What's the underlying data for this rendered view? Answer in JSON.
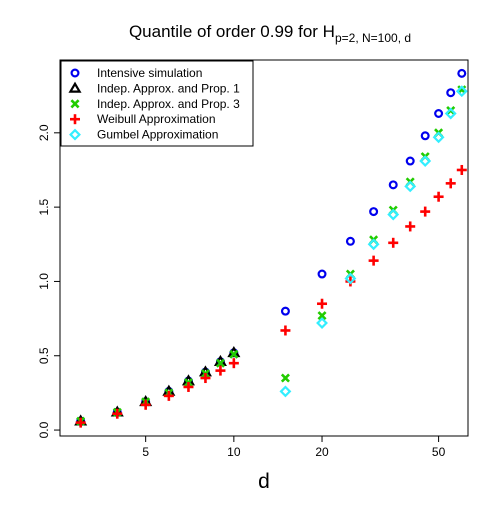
{
  "chart_data": {
    "type": "scatter",
    "title": "Quantile of order 0.99 for H",
    "title_subscript": "p=2, N=100, d",
    "xlabel": "d",
    "ylabel": "",
    "xscale": "log",
    "xlim": [
      2.55,
      63
    ],
    "ylim": [
      -0.04,
      2.49
    ],
    "x_ticks": [
      5,
      10,
      20,
      50
    ],
    "y_ticks": [
      0.0,
      0.5,
      1.0,
      1.5,
      2.0
    ],
    "y_tick_labels": [
      "0.0",
      "0.5",
      "1.0",
      "1.5",
      "2.0"
    ],
    "grid": false,
    "legend": "top-left",
    "series": [
      {
        "name": "Intensive simulation",
        "marker": "circle",
        "color": "#0000ee",
        "x": [
          3,
          4,
          5,
          6,
          7,
          8,
          9,
          10,
          15,
          20,
          25,
          30,
          35,
          40,
          45,
          50,
          55,
          60
        ],
        "y": [
          0.06,
          0.12,
          0.19,
          0.26,
          0.33,
          0.39,
          0.46,
          0.52,
          0.8,
          1.05,
          1.27,
          1.47,
          1.65,
          1.81,
          1.98,
          2.13,
          2.27,
          2.4
        ]
      },
      {
        "name": "Indep. Approx. and Prop. 1",
        "marker": "triangle",
        "color": "#000000",
        "x": [
          3,
          4,
          5,
          6,
          7,
          8,
          9,
          10
        ],
        "y": [
          0.06,
          0.12,
          0.19,
          0.26,
          0.33,
          0.39,
          0.46,
          0.52
        ]
      },
      {
        "name": "Indep. Approx. and Prop. 3",
        "marker": "x",
        "color": "#22cc00",
        "x": [
          3,
          4,
          5,
          6,
          7,
          8,
          9,
          10,
          15,
          20,
          25,
          30,
          35,
          40,
          45,
          50,
          55,
          60
        ],
        "y": [
          0.06,
          0.12,
          0.19,
          0.25,
          0.32,
          0.38,
          0.45,
          0.51,
          0.35,
          0.77,
          1.05,
          1.28,
          1.48,
          1.67,
          1.84,
          2.0,
          2.15,
          2.29
        ]
      },
      {
        "name": "Weibull Approximation",
        "marker": "plus",
        "color": "#ff0000",
        "x": [
          3,
          4,
          5,
          6,
          7,
          8,
          9,
          10,
          15,
          20,
          25,
          30,
          35,
          40,
          45,
          50,
          55,
          60
        ],
        "y": [
          0.05,
          0.11,
          0.17,
          0.23,
          0.29,
          0.35,
          0.4,
          0.45,
          0.67,
          0.85,
          1.0,
          1.14,
          1.26,
          1.37,
          1.47,
          1.57,
          1.66,
          1.75
        ]
      },
      {
        "name": "Gumbel Approximation",
        "marker": "diamond",
        "color": "#33eeff",
        "x": [
          15,
          20,
          25,
          30,
          35,
          40,
          45,
          50,
          55,
          60
        ],
        "y": [
          0.26,
          0.72,
          1.02,
          1.25,
          1.45,
          1.64,
          1.81,
          1.97,
          2.13,
          2.28
        ]
      }
    ]
  }
}
